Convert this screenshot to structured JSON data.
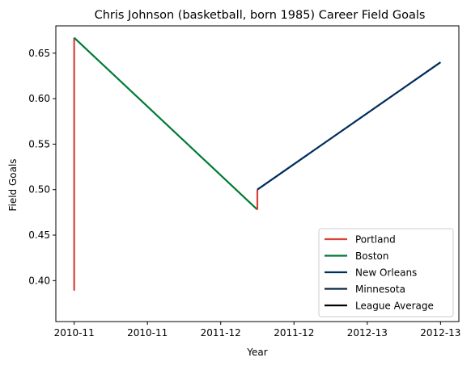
{
  "chart_data": {
    "type": "line",
    "title": "Chris Johnson (basketball, born 1985) Career Field Goals",
    "xlabel": "Year",
    "ylabel": "Field Goals",
    "x_ticks": [
      {
        "pos": 0,
        "label": "2010-11"
      },
      {
        "pos": 1,
        "label": "2010-11"
      },
      {
        "pos": 2,
        "label": "2011-12"
      },
      {
        "pos": 3,
        "label": "2011-12"
      },
      {
        "pos": 4,
        "label": "2012-13"
      },
      {
        "pos": 5,
        "label": "2012-13"
      }
    ],
    "xlim": [
      -0.25,
      5.25
    ],
    "ylim": [
      0.355,
      0.68
    ],
    "y_ticks": [
      0.4,
      0.45,
      0.5,
      0.55,
      0.6,
      0.65
    ],
    "grid": false,
    "legend_position": "bottom-right",
    "series": [
      {
        "name": "Portland",
        "color": "#d9413b",
        "points": [
          [
            0,
            0.389
          ],
          [
            0,
            0.667
          ]
        ]
      },
      {
        "name": "Boston",
        "color": "#007a33",
        "points": [
          [
            0,
            0.667
          ],
          [
            2.5,
            0.478
          ]
        ]
      },
      {
        "name": "Portland",
        "color": "#d9413b",
        "points": [
          [
            2.5,
            0.478
          ],
          [
            2.5,
            0.5
          ]
        ]
      },
      {
        "name": "New Orleans",
        "color": "#002b5c",
        "points": [
          [
            2.5,
            0.5
          ],
          [
            5,
            0.64
          ]
        ]
      },
      {
        "name": "Minnesota",
        "color": "#0c2340",
        "points": []
      },
      {
        "name": "League Average",
        "color": "#000000",
        "points": []
      }
    ],
    "legend": [
      {
        "name": "Portland",
        "color": "#d9413b"
      },
      {
        "name": "Boston",
        "color": "#007a33"
      },
      {
        "name": "New Orleans",
        "color": "#002b5c"
      },
      {
        "name": "Minnesota",
        "color": "#0c2340"
      },
      {
        "name": "League Average",
        "color": "#000000"
      }
    ]
  }
}
